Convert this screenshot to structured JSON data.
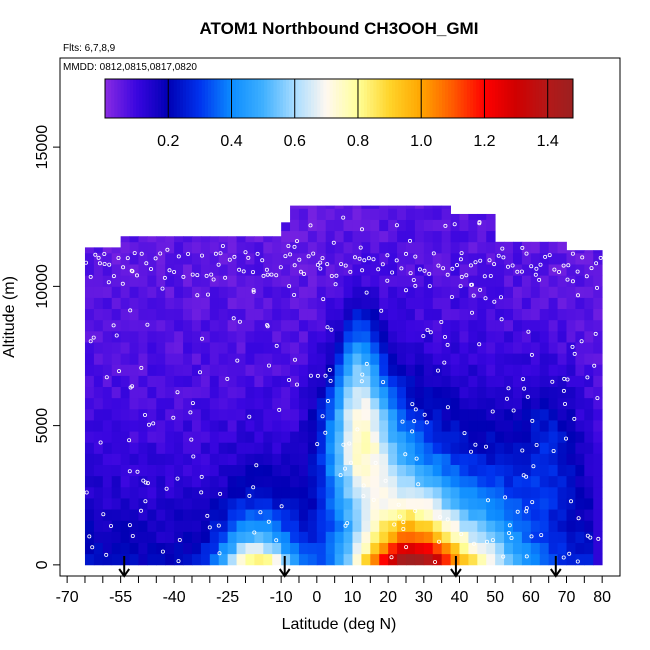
{
  "chart_data": {
    "type": "heatmap",
    "title": "ATOM1 Northbound CH3OOH_GMI",
    "subtitle_flights": "Flts: 6,7,8,9",
    "subtitle_dates": "MMDD: 0812,0815,0817,0820",
    "xlabel": "Latitude (deg N)",
    "ylabel": "Altitude (m)",
    "xlim": [
      -72,
      85
    ],
    "ylim": [
      -400,
      18200
    ],
    "x_ticks": [
      -70,
      -55,
      -40,
      -25,
      -10,
      0,
      10,
      20,
      30,
      40,
      50,
      60,
      70,
      80
    ],
    "x_tick_labels": [
      "-70",
      "-55",
      "-40",
      "-25",
      "-10",
      "0",
      "10",
      "20",
      "30",
      "40",
      "50",
      "60",
      "70",
      "80"
    ],
    "x_minor_ticks": [
      -65,
      -60,
      -50,
      -45,
      -35,
      -30,
      -20,
      -15,
      -5,
      5,
      15,
      25,
      35,
      45,
      55,
      65,
      75
    ],
    "y_ticks": [
      0,
      5000,
      10000,
      15000
    ],
    "y_tick_labels": [
      "0",
      "5000",
      "10000",
      "15000"
    ],
    "colorbar": {
      "min": 0,
      "max": 1.48,
      "ticks": [
        0.2,
        0.4,
        0.6,
        0.8,
        1.0,
        1.2,
        1.4
      ],
      "tick_labels": [
        "0.2",
        "0.4",
        "0.6",
        "0.8",
        "1.0",
        "1.2",
        "1.4"
      ],
      "stops": [
        {
          "v": 0.0,
          "c": "#8a2be2"
        },
        {
          "v": 0.1,
          "c": "#3a06e0"
        },
        {
          "v": 0.2,
          "c": "#0000b4"
        },
        {
          "v": 0.3,
          "c": "#0033ee"
        },
        {
          "v": 0.4,
          "c": "#0c8cff"
        },
        {
          "v": 0.5,
          "c": "#3fb0ff"
        },
        {
          "v": 0.6,
          "c": "#a8dcff"
        },
        {
          "v": 0.7,
          "c": "#fff8f0"
        },
        {
          "v": 0.8,
          "c": "#ffff99"
        },
        {
          "v": 0.9,
          "c": "#ffd42a"
        },
        {
          "v": 1.0,
          "c": "#ffa500"
        },
        {
          "v": 1.1,
          "c": "#ff5a00"
        },
        {
          "v": 1.2,
          "c": "#ff0000"
        },
        {
          "v": 1.3,
          "c": "#d00000"
        },
        {
          "v": 1.4,
          "c": "#b41818"
        },
        {
          "v": 1.48,
          "c": "#9c2020"
        }
      ]
    },
    "field": {
      "lat_range": [
        -65,
        80
      ],
      "top_alt_by_lat": [
        [
          -65,
          11400
        ],
        [
          -55,
          11800
        ],
        [
          -40,
          11800
        ],
        [
          -25,
          11800
        ],
        [
          -10,
          12300
        ],
        [
          -8,
          12900
        ],
        [
          10,
          12900
        ],
        [
          30,
          12900
        ],
        [
          38,
          12600
        ],
        [
          45,
          12600
        ],
        [
          50,
          11600
        ],
        [
          65,
          11600
        ],
        [
          70,
          11300
        ],
        [
          80,
          11300
        ]
      ],
      "bottom_alt": 0
    },
    "flight_arrows_lat": [
      -54,
      -9,
      39,
      67
    ],
    "grid": false,
    "colors": {
      "axis": "#000000",
      "obs_points": "#ffffff",
      "background": "#ffffff"
    }
  }
}
